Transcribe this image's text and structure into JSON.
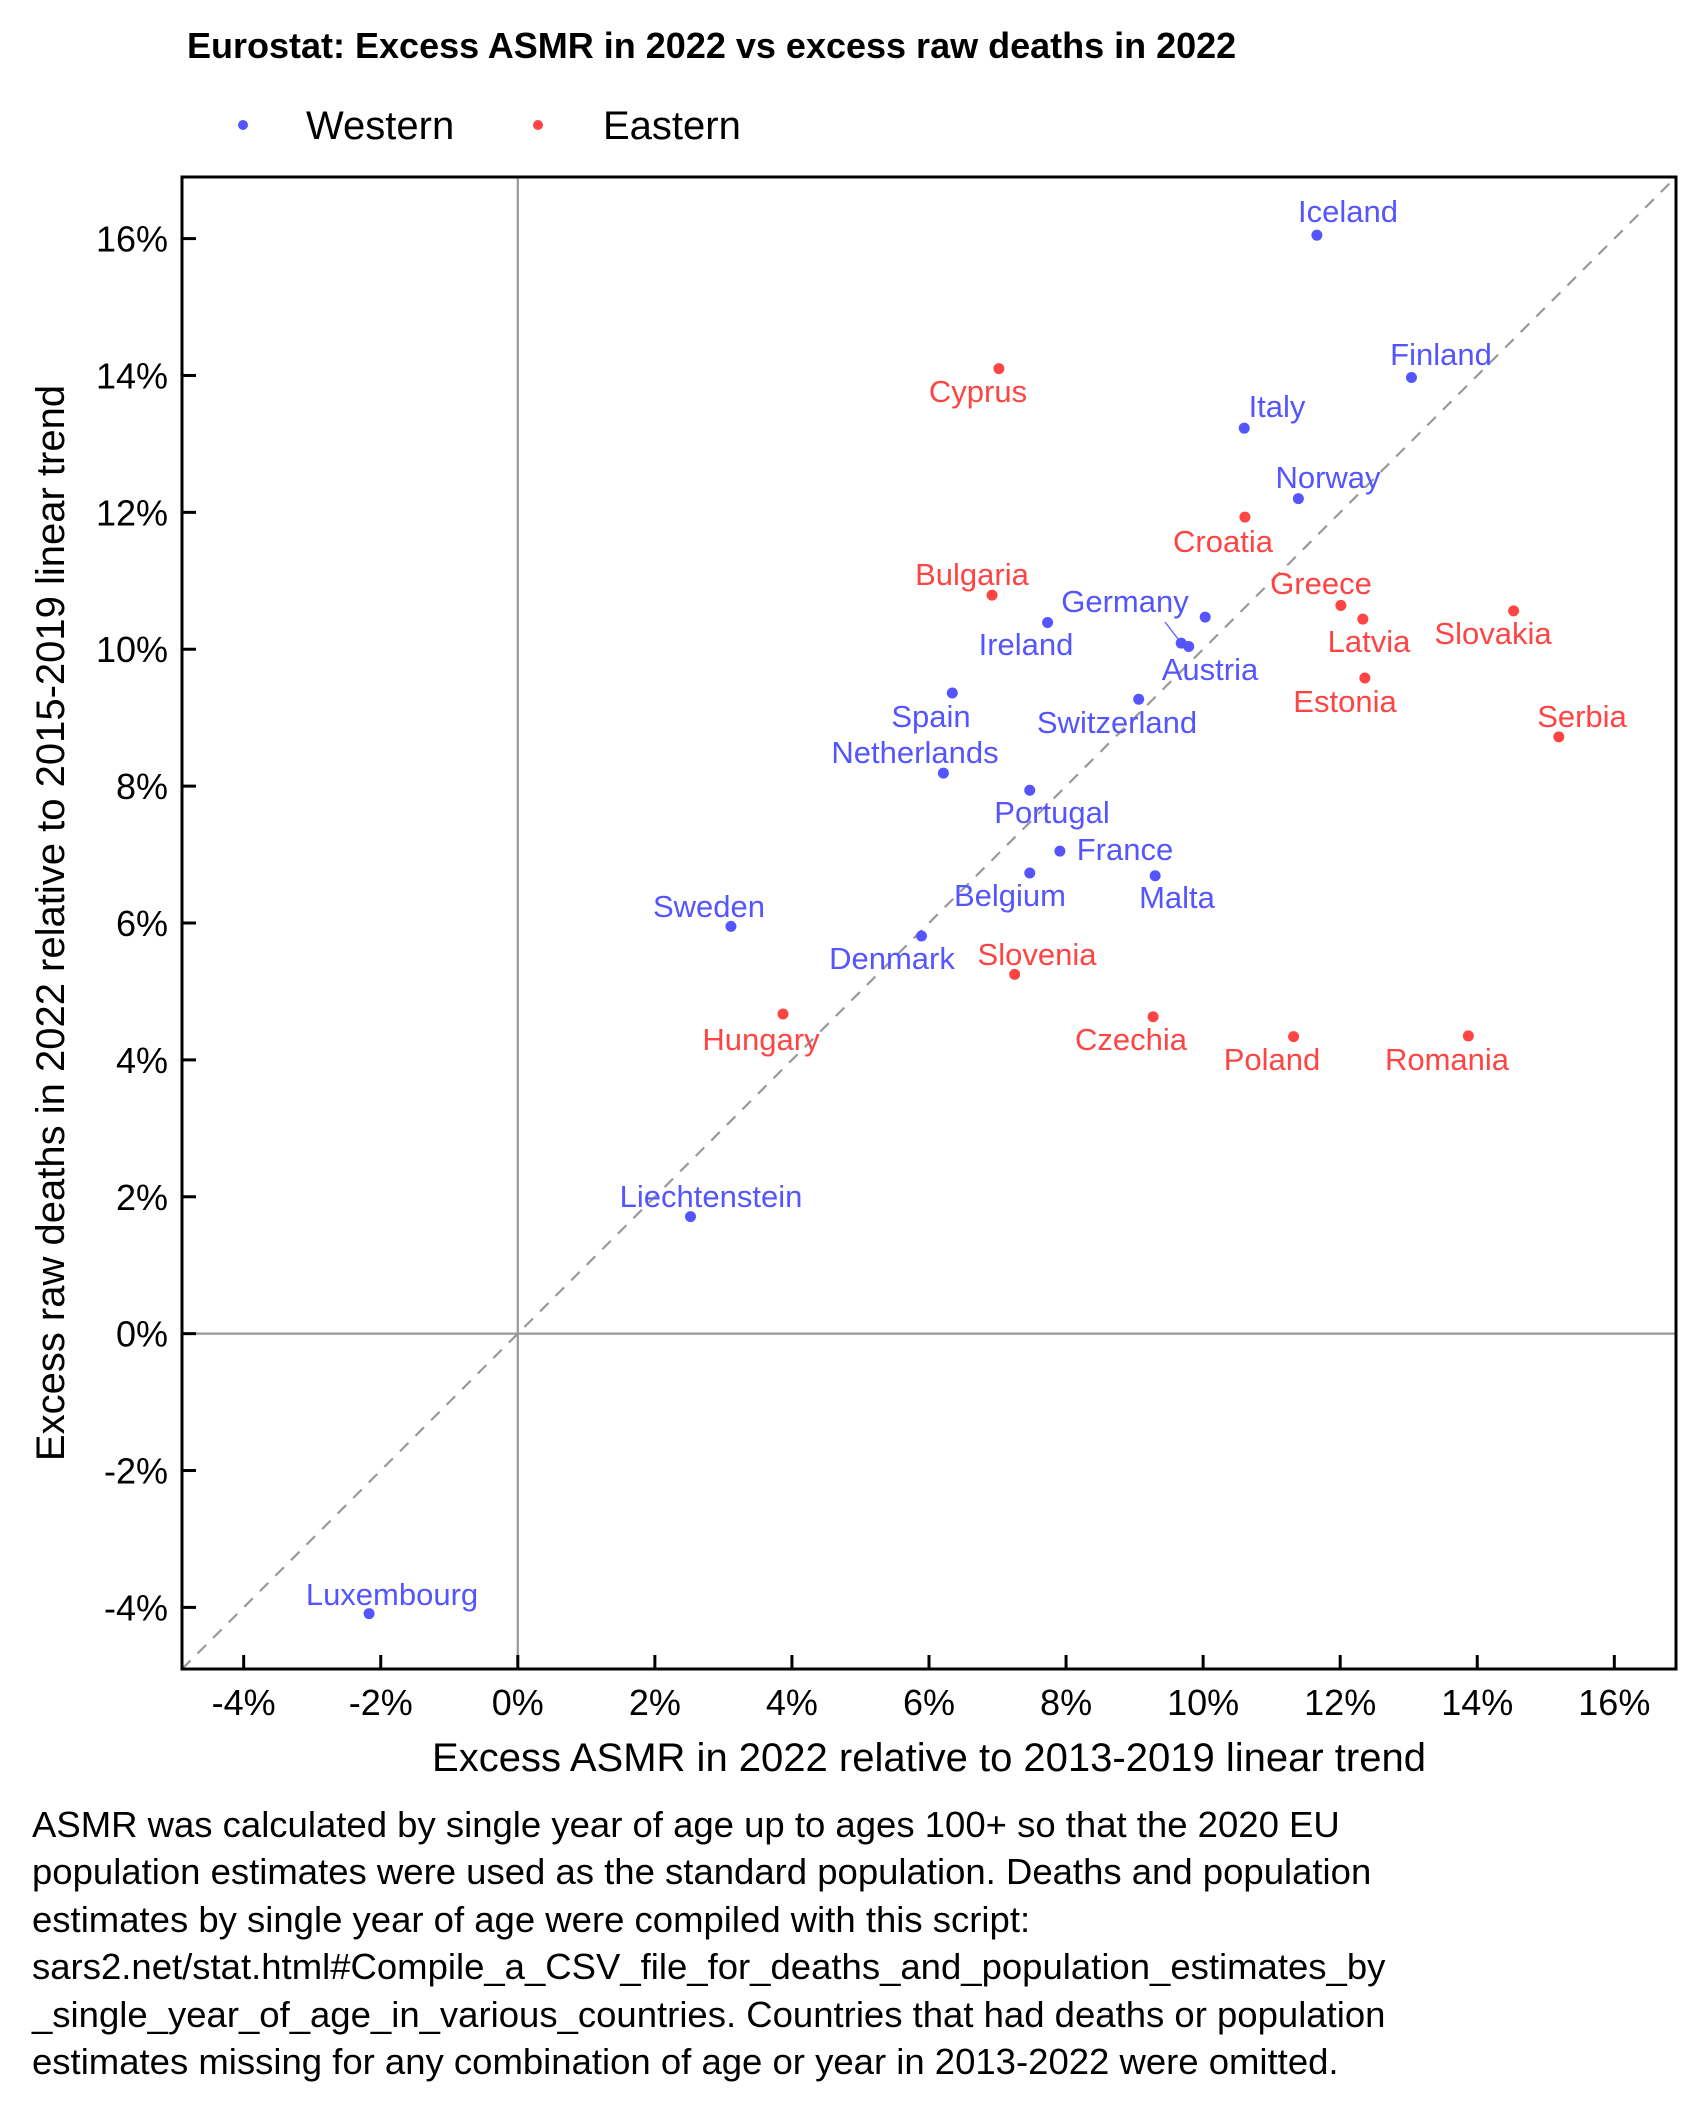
{
  "chart_data": {
    "type": "scatter",
    "title": "Eurostat: Excess ASMR in 2022 vs excess raw deaths in 2022",
    "xlabel": "Excess ASMR in 2022 relative to 2013-2019 linear trend",
    "ylabel": "Excess raw deaths in 2022 relative to 2015-2019 linear trend",
    "xlim": [
      -4.9,
      16.9
    ],
    "ylim": [
      -4.9,
      16.9
    ],
    "unit": "%",
    "x_ticks": [
      -4,
      -2,
      0,
      2,
      4,
      6,
      8,
      10,
      12,
      14,
      16
    ],
    "y_ticks": [
      -4,
      -2,
      0,
      2,
      4,
      6,
      8,
      10,
      12,
      14,
      16
    ],
    "x_tick_labels": [
      "-4%",
      "-2%",
      "0%",
      "2%",
      "4%",
      "6%",
      "8%",
      "10%",
      "12%",
      "14%",
      "16%"
    ],
    "y_tick_labels": [
      "-4%",
      "-2%",
      "0%",
      "2%",
      "4%",
      "6%",
      "8%",
      "10%",
      "12%",
      "14%",
      "16%"
    ],
    "grid": false,
    "reference_lines": {
      "x_zero": true,
      "y_zero": true,
      "diagonal_y_equals_x": true
    },
    "legend": {
      "placement": "top-left",
      "entries": [
        {
          "name": "Western",
          "color": "#5555ff"
        },
        {
          "name": "Eastern",
          "color": "#ff4444"
        }
      ]
    },
    "series": [
      {
        "name": "Western",
        "color": "#5555ff",
        "points": [
          {
            "label": "Iceland",
            "x": 11.66,
            "y": 16.05
          },
          {
            "label": "Finland",
            "x": 13.04,
            "y": 13.97
          },
          {
            "label": "Italy",
            "x": 10.6,
            "y": 13.23
          },
          {
            "label": "Norway",
            "x": 11.39,
            "y": 12.2
          },
          {
            "label": "Ireland",
            "x": 7.73,
            "y": 10.39
          },
          {
            "label": "Germany",
            "x": 9.68,
            "y": 10.09
          },
          {
            "label": "Austria",
            "x": 9.79,
            "y": 10.04
          },
          {
            "label": "",
            "x": 10.03,
            "y": 10.47
          },
          {
            "label": "Spain",
            "x": 6.34,
            "y": 9.36
          },
          {
            "label": "Switzerland",
            "x": 9.06,
            "y": 9.27
          },
          {
            "label": "Netherlands",
            "x": 6.21,
            "y": 8.19
          },
          {
            "label": "Portugal",
            "x": 7.47,
            "y": 7.94
          },
          {
            "label": "France",
            "x": 7.91,
            "y": 7.05
          },
          {
            "label": "Belgium",
            "x": 7.47,
            "y": 6.73
          },
          {
            "label": "Malta",
            "x": 9.3,
            "y": 6.69
          },
          {
            "label": "Sweden",
            "x": 3.11,
            "y": 5.95
          },
          {
            "label": "Denmark",
            "x": 5.89,
            "y": 5.81
          },
          {
            "label": "Liechtenstein",
            "x": 2.52,
            "y": 1.71
          },
          {
            "label": "Luxembourg",
            "x": -2.17,
            "y": -4.09
          }
        ]
      },
      {
        "name": "Eastern",
        "color": "#ff4444",
        "points": [
          {
            "label": "Cyprus",
            "x": 7.02,
            "y": 14.1
          },
          {
            "label": "Croatia",
            "x": 10.61,
            "y": 11.93
          },
          {
            "label": "Bulgaria",
            "x": 6.92,
            "y": 10.79
          },
          {
            "label": "Greece",
            "x": 12.01,
            "y": 10.64
          },
          {
            "label": "Slovakia",
            "x": 14.53,
            "y": 10.56
          },
          {
            "label": "Latvia",
            "x": 12.33,
            "y": 10.44
          },
          {
            "label": "Estonia",
            "x": 12.36,
            "y": 9.58
          },
          {
            "label": "Serbia",
            "x": 15.19,
            "y": 8.72
          },
          {
            "label": "Slovenia",
            "x": 7.25,
            "y": 5.25
          },
          {
            "label": "Hungary",
            "x": 3.87,
            "y": 4.67
          },
          {
            "label": "Czechia",
            "x": 9.27,
            "y": 4.63
          },
          {
            "label": "Romania",
            "x": 13.87,
            "y": 4.35
          },
          {
            "label": "Poland",
            "x": 11.32,
            "y": 4.34
          }
        ]
      }
    ]
  },
  "footnote": [
    "ASMR was calculated by single year of age up to ages 100+ so that the 2020 EU",
    "population estimates were used as the standard population. Deaths and population",
    "estimates by single year of age were compiled with this script:",
    "sars2.net/stat.html#Compile_a_CSV_file_for_deaths_and_population_estimates_by",
    "_single_year_of_age_in_various_countries. Countries that had deaths or population",
    "estimates missing for any combination of age or year in 2013-2022 were omitted."
  ]
}
